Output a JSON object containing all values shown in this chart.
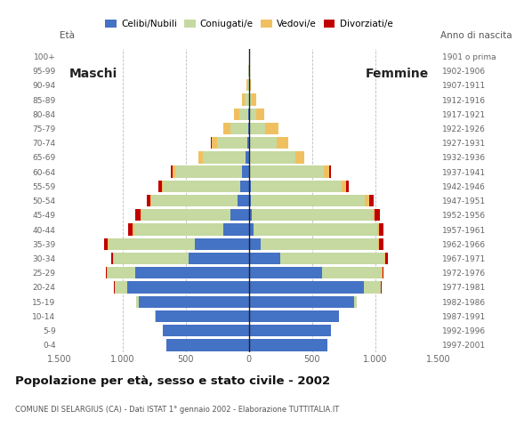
{
  "title": "Popolazione per età, sesso e stato civile - 2002",
  "subtitle": "COMUNE DI SELARGIUS (CA) - Dati ISTAT 1° gennaio 2002 - Elaborazione TUTTITALIA.IT",
  "age_groups": [
    "0-4",
    "5-9",
    "10-14",
    "15-19",
    "20-24",
    "25-29",
    "30-34",
    "35-39",
    "40-44",
    "45-49",
    "50-54",
    "55-59",
    "60-64",
    "65-69",
    "70-74",
    "75-79",
    "80-84",
    "85-89",
    "90-94",
    "95-99",
    "100+"
  ],
  "birth_years": [
    "1997-2001",
    "1992-1996",
    "1987-1991",
    "1982-1986",
    "1977-1981",
    "1972-1976",
    "1967-1971",
    "1962-1966",
    "1957-1961",
    "1952-1956",
    "1947-1951",
    "1942-1946",
    "1937-1941",
    "1932-1936",
    "1927-1931",
    "1922-1926",
    "1917-1921",
    "1912-1916",
    "1907-1911",
    "1902-1906",
    "1901 o prima"
  ],
  "colors": {
    "celibe": "#4472c4",
    "coniugato": "#c5d9a0",
    "vedovo": "#f0c060",
    "divorziato": "#c00000"
  },
  "males": {
    "celibe": [
      650,
      680,
      740,
      870,
      960,
      900,
      480,
      430,
      200,
      150,
      90,
      70,
      55,
      25,
      12,
      6,
      3,
      1,
      0,
      0,
      0
    ],
    "coniugato": [
      0,
      0,
      5,
      25,
      100,
      220,
      590,
      680,
      710,
      700,
      680,
      610,
      530,
      340,
      240,
      140,
      70,
      30,
      10,
      3,
      0
    ],
    "vedovo": [
      0,
      0,
      0,
      0,
      2,
      5,
      5,
      8,
      8,
      8,
      12,
      12,
      22,
      32,
      45,
      55,
      45,
      22,
      9,
      2,
      0
    ],
    "divorziato": [
      0,
      0,
      0,
      0,
      5,
      8,
      12,
      30,
      35,
      40,
      28,
      22,
      12,
      6,
      2,
      0,
      0,
      0,
      0,
      0,
      0
    ]
  },
  "females": {
    "celibe": [
      620,
      650,
      710,
      830,
      910,
      580,
      250,
      90,
      35,
      22,
      18,
      12,
      9,
      6,
      2,
      1,
      0,
      0,
      0,
      0,
      0
    ],
    "coniugato": [
      0,
      0,
      5,
      25,
      130,
      470,
      820,
      930,
      980,
      960,
      900,
      720,
      580,
      360,
      220,
      130,
      55,
      22,
      6,
      2,
      0
    ],
    "vedovo": [
      0,
      0,
      0,
      0,
      2,
      5,
      10,
      12,
      12,
      12,
      30,
      35,
      45,
      68,
      90,
      100,
      68,
      33,
      12,
      3,
      1
    ],
    "divorziato": [
      0,
      0,
      0,
      0,
      5,
      12,
      18,
      35,
      35,
      40,
      35,
      22,
      12,
      6,
      2,
      0,
      0,
      0,
      0,
      0,
      0
    ]
  },
  "xlim": 1500,
  "xtick_positions": [
    -1500,
    -1000,
    -500,
    0,
    500,
    1000,
    1500
  ],
  "xtick_labels": [
    "1.500",
    "1.000",
    "500",
    "0",
    "500",
    "1.000",
    "1.500"
  ]
}
